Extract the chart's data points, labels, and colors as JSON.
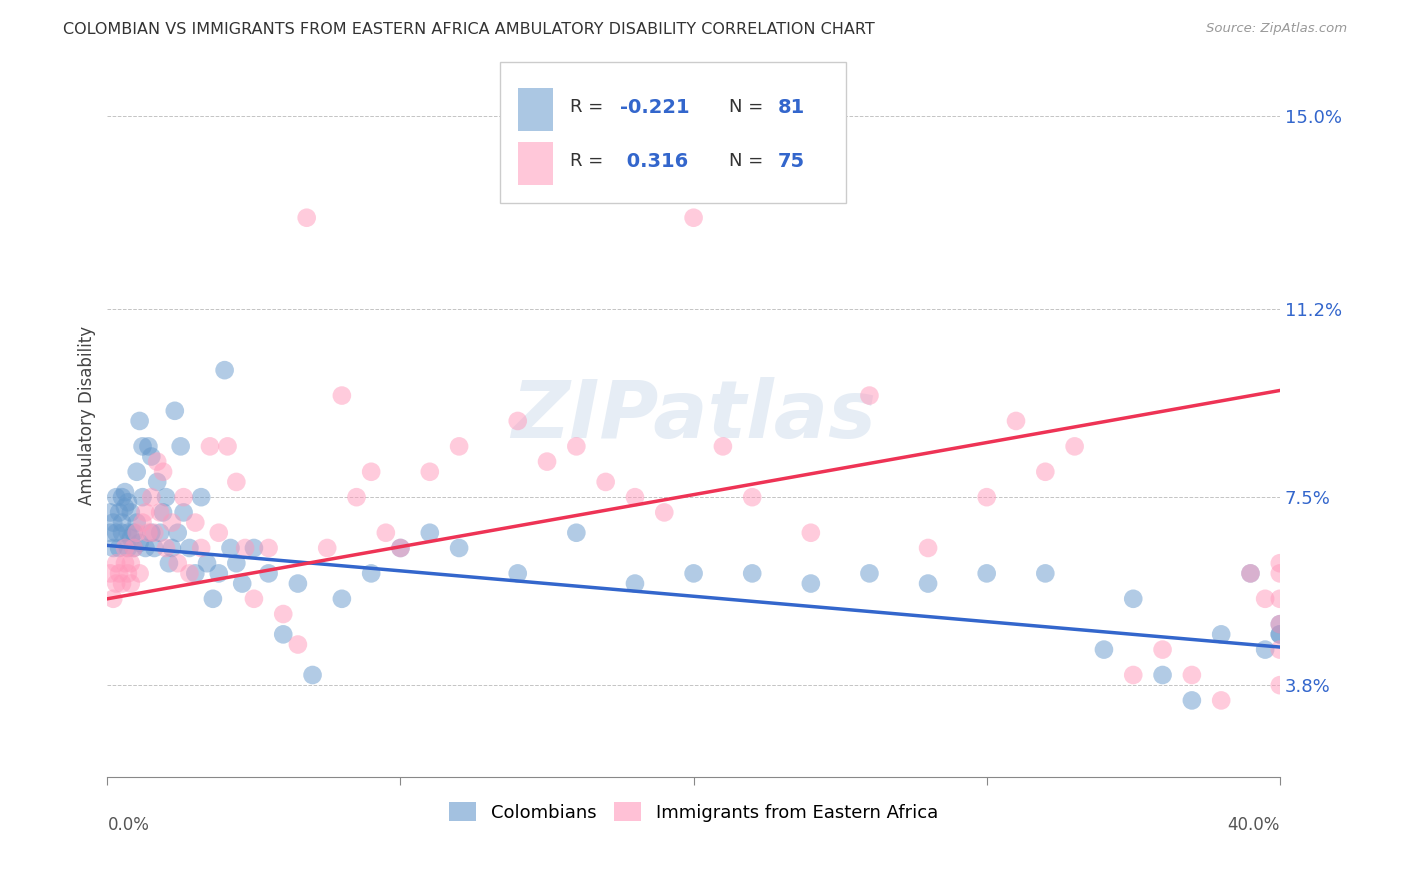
{
  "title": "COLOMBIAN VS IMMIGRANTS FROM EASTERN AFRICA AMBULATORY DISABILITY CORRELATION CHART",
  "source": "Source: ZipAtlas.com",
  "ylabel": "Ambulatory Disability",
  "xmin": 0.0,
  "xmax": 0.4,
  "ymin": 0.02,
  "ymax": 0.162,
  "yticks_right": [
    0.038,
    0.075,
    0.112,
    0.15
  ],
  "ytick_labels_right": [
    "3.8%",
    "7.5%",
    "11.2%",
    "15.0%"
  ],
  "color_blue": "#6699CC",
  "color_pink": "#FF99BB",
  "color_blue_line": "#3366CC",
  "color_pink_line": "#EE3355",
  "watermark": "ZIPatlas",
  "blue_line_y0": 0.0655,
  "blue_line_y1": 0.0455,
  "pink_line_y0": 0.055,
  "pink_line_y1": 0.096,
  "colombians_x": [
    0.001,
    0.001,
    0.002,
    0.002,
    0.003,
    0.003,
    0.004,
    0.004,
    0.005,
    0.005,
    0.005,
    0.006,
    0.006,
    0.007,
    0.007,
    0.007,
    0.008,
    0.008,
    0.009,
    0.009,
    0.01,
    0.01,
    0.011,
    0.011,
    0.012,
    0.012,
    0.013,
    0.014,
    0.015,
    0.015,
    0.016,
    0.017,
    0.018,
    0.019,
    0.02,
    0.021,
    0.022,
    0.023,
    0.024,
    0.025,
    0.026,
    0.028,
    0.03,
    0.032,
    0.034,
    0.036,
    0.038,
    0.04,
    0.042,
    0.044,
    0.046,
    0.05,
    0.055,
    0.06,
    0.065,
    0.07,
    0.08,
    0.09,
    0.1,
    0.11,
    0.12,
    0.14,
    0.16,
    0.18,
    0.2,
    0.22,
    0.24,
    0.26,
    0.28,
    0.3,
    0.32,
    0.34,
    0.35,
    0.36,
    0.37,
    0.38,
    0.39,
    0.395,
    0.4,
    0.4,
    0.4
  ],
  "colombians_y": [
    0.072,
    0.068,
    0.07,
    0.065,
    0.075,
    0.068,
    0.072,
    0.065,
    0.075,
    0.07,
    0.068,
    0.073,
    0.076,
    0.068,
    0.074,
    0.065,
    0.067,
    0.072,
    0.065,
    0.068,
    0.07,
    0.08,
    0.066,
    0.09,
    0.085,
    0.075,
    0.065,
    0.085,
    0.068,
    0.083,
    0.065,
    0.078,
    0.068,
    0.072,
    0.075,
    0.062,
    0.065,
    0.092,
    0.068,
    0.085,
    0.072,
    0.065,
    0.06,
    0.075,
    0.062,
    0.055,
    0.06,
    0.1,
    0.065,
    0.062,
    0.058,
    0.065,
    0.06,
    0.048,
    0.058,
    0.04,
    0.055,
    0.06,
    0.065,
    0.068,
    0.065,
    0.06,
    0.068,
    0.058,
    0.06,
    0.06,
    0.058,
    0.06,
    0.058,
    0.06,
    0.06,
    0.045,
    0.055,
    0.04,
    0.035,
    0.048,
    0.06,
    0.045,
    0.05,
    0.048,
    0.048
  ],
  "eastern_africa_x": [
    0.001,
    0.002,
    0.003,
    0.003,
    0.004,
    0.005,
    0.006,
    0.006,
    0.007,
    0.008,
    0.008,
    0.009,
    0.01,
    0.011,
    0.012,
    0.013,
    0.014,
    0.015,
    0.016,
    0.017,
    0.018,
    0.019,
    0.02,
    0.022,
    0.024,
    0.026,
    0.028,
    0.03,
    0.032,
    0.035,
    0.038,
    0.041,
    0.044,
    0.047,
    0.05,
    0.055,
    0.06,
    0.065,
    0.068,
    0.075,
    0.08,
    0.085,
    0.09,
    0.095,
    0.1,
    0.11,
    0.12,
    0.14,
    0.15,
    0.16,
    0.17,
    0.18,
    0.19,
    0.2,
    0.21,
    0.22,
    0.24,
    0.26,
    0.28,
    0.3,
    0.31,
    0.32,
    0.33,
    0.35,
    0.36,
    0.37,
    0.38,
    0.39,
    0.395,
    0.4,
    0.4,
    0.4,
    0.4,
    0.4,
    0.4
  ],
  "eastern_africa_y": [
    0.06,
    0.055,
    0.058,
    0.062,
    0.06,
    0.058,
    0.062,
    0.065,
    0.06,
    0.058,
    0.062,
    0.065,
    0.068,
    0.06,
    0.07,
    0.072,
    0.068,
    0.075,
    0.068,
    0.082,
    0.072,
    0.08,
    0.065,
    0.07,
    0.062,
    0.075,
    0.06,
    0.07,
    0.065,
    0.085,
    0.068,
    0.085,
    0.078,
    0.065,
    0.055,
    0.065,
    0.052,
    0.046,
    0.13,
    0.065,
    0.095,
    0.075,
    0.08,
    0.068,
    0.065,
    0.08,
    0.085,
    0.09,
    0.082,
    0.085,
    0.078,
    0.075,
    0.072,
    0.13,
    0.085,
    0.075,
    0.068,
    0.095,
    0.065,
    0.075,
    0.09,
    0.08,
    0.085,
    0.04,
    0.045,
    0.04,
    0.035,
    0.06,
    0.055,
    0.05,
    0.038,
    0.045,
    0.055,
    0.06,
    0.062
  ]
}
